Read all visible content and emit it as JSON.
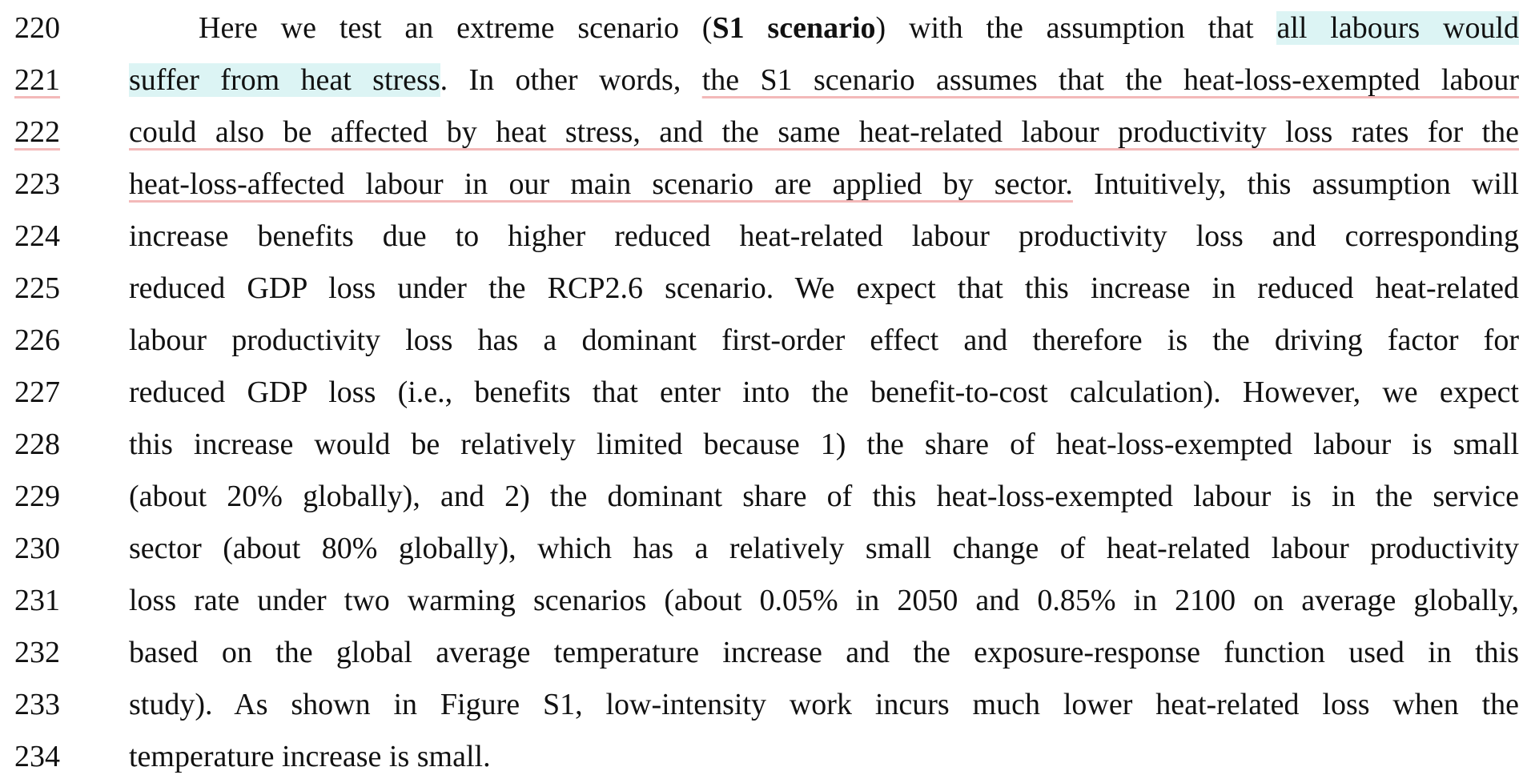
{
  "lines": [
    {
      "number": "220",
      "segments": [
        "Here we test an extreme scenario (",
        "S1 scenario",
        ") with the assumption that ",
        "all labours would"
      ]
    },
    {
      "number": "221",
      "segments": [
        "suffer from heat stress",
        ". In other words, ",
        "the S1 scenario assumes that the heat-loss-exempted labour"
      ]
    },
    {
      "number": "222",
      "segments": [
        "could also be affected by heat stress, and the same heat-related labour productivity loss rates for the"
      ]
    },
    {
      "number": "223",
      "segments": [
        "heat-loss-affected labour in our main scenario are applied by sector.",
        " Intuitively, this assumption will"
      ]
    },
    {
      "number": "224",
      "segments": [
        "increase benefits due to higher reduced heat-related labour productivity loss and corresponding"
      ]
    },
    {
      "number": "225",
      "segments": [
        "reduced GDP loss under the RCP2.6 scenario. We expect that this increase in reduced heat-related"
      ]
    },
    {
      "number": "226",
      "segments": [
        "labour productivity loss has a dominant first-order effect and therefore is the driving factor for"
      ]
    },
    {
      "number": "227",
      "segments": [
        "reduced GDP loss (i.e., benefits that enter into the benefit-to-cost calculation). However, we expect"
      ]
    },
    {
      "number": "228",
      "segments": [
        "this increase would be relatively limited because 1) the share of heat-loss-exempted labour is small"
      ]
    },
    {
      "number": "229",
      "segments": [
        "(about 20% globally), and 2) the dominant share of this heat-loss-exempted labour is in the service"
      ]
    },
    {
      "number": "230",
      "segments": [
        "sector (about 80% globally), which has a relatively small change of heat-related labour productivity"
      ]
    },
    {
      "number": "231",
      "segments": [
        "loss rate under two warming scenarios (about 0.05% in 2050 and 0.85% in 2100 on average globally,"
      ]
    },
    {
      "number": "232",
      "segments": [
        "based on the global average temperature increase and the exposure-response function used in this"
      ]
    },
    {
      "number": "233",
      "segments": [
        "study). As shown in Figure S1, low-intensity work incurs much lower heat-related loss when the"
      ]
    },
    {
      "number": "234",
      "segments": [
        "temperature increase is small."
      ]
    }
  ],
  "colors": {
    "highlight": "#dcf4f4",
    "underline": "#f3b9b9",
    "text": "#111111"
  }
}
